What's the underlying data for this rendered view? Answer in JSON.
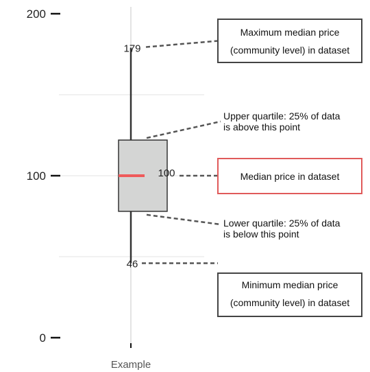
{
  "chart_data": {
    "type": "box",
    "categories": [
      "Example"
    ],
    "series": [
      {
        "category": "Example",
        "min": 46,
        "q1": 78,
        "median": 100,
        "q3": 122,
        "max": 179
      }
    ],
    "yticks": [
      0,
      100,
      200
    ],
    "ylim": [
      0,
      200
    ],
    "grid_y": [
      50,
      150
    ],
    "data_labels": {
      "max": "179",
      "median": "100",
      "min": "46"
    },
    "annotations": {
      "max": [
        "Maximum median price",
        "(community level) in dataset"
      ],
      "q3": [
        "Upper quartile: 25% of data",
        "is above this point"
      ],
      "median": [
        "Median price in dataset"
      ],
      "q1": [
        "Lower quartile: 25% of data",
        "is below this point"
      ],
      "min": [
        "Minimum median price",
        "(community level) in dataset"
      ]
    },
    "colors": {
      "box_fill": "#d4d5d4",
      "box_stroke": "#333333",
      "median": "#ef5a5a",
      "median_note_border": "#e05a5a",
      "note_border": "#444444",
      "grid": "#e3e3e3",
      "leader": "#555555"
    }
  }
}
